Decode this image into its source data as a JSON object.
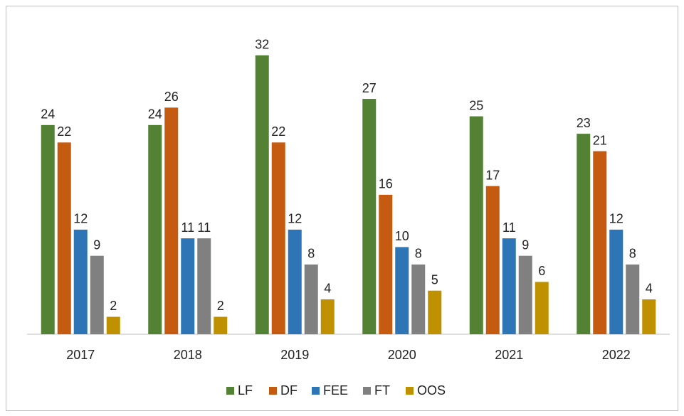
{
  "chart_data": {
    "type": "bar",
    "categories": [
      "2017",
      "2018",
      "2019",
      "2020",
      "2021",
      "2022"
    ],
    "series": [
      {
        "name": "LF",
        "color": "#548235",
        "values": [
          24,
          24,
          32,
          27,
          25,
          23
        ]
      },
      {
        "name": "DF",
        "color": "#c55a11",
        "values": [
          22,
          26,
          22,
          16,
          17,
          21
        ]
      },
      {
        "name": "FEE",
        "color": "#2e75b6",
        "values": [
          12,
          11,
          12,
          10,
          11,
          12
        ]
      },
      {
        "name": "FT",
        "color": "#808080",
        "values": [
          9,
          11,
          8,
          8,
          9,
          8
        ]
      },
      {
        "name": "OOS",
        "color": "#bf9000",
        "values": [
          2,
          2,
          4,
          5,
          6,
          4
        ]
      }
    ],
    "ylim": [
      0,
      35
    ],
    "legend": "bottom"
  }
}
